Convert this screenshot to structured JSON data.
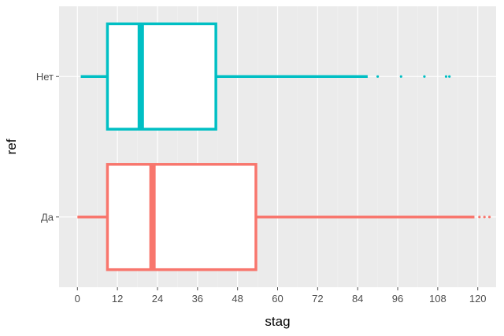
{
  "chart_data": {
    "type": "boxplot",
    "orientation": "horizontal",
    "xlabel": "stag",
    "ylabel": "ref",
    "xlim": [
      -5.5,
      125.5
    ],
    "xticks": [
      0,
      12,
      24,
      36,
      48,
      60,
      72,
      84,
      96,
      108,
      120
    ],
    "grid": true,
    "legend": "none",
    "categories": [
      "Нет",
      "Да"
    ],
    "series": [
      {
        "category": "Нет",
        "color": "#00BFC4",
        "min": 1,
        "q1": 9,
        "median": 19,
        "q3": 41.5,
        "max": 87,
        "outliers": [
          90,
          97,
          104,
          110.5,
          111.5
        ]
      },
      {
        "category": "Да",
        "color": "#F8766D",
        "min": 0,
        "q1": 9,
        "median": 22.5,
        "q3": 53.5,
        "max": 119,
        "outliers": [
          120.5,
          122,
          123.5
        ]
      }
    ]
  },
  "colors": {
    "panel_background": "#EBEBEB",
    "grid_major": "#FFFFFF",
    "grid_minor": "#F2F2F2"
  }
}
